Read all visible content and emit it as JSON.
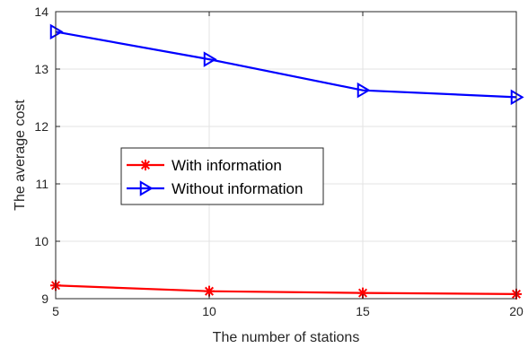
{
  "chart_data": {
    "type": "line",
    "x": [
      5,
      10,
      15,
      20
    ],
    "series": [
      {
        "name": "With information",
        "values": [
          9.23,
          9.13,
          9.1,
          9.08
        ],
        "color": "#ff0000",
        "marker": "asterisk"
      },
      {
        "name": "Without information",
        "values": [
          13.65,
          13.17,
          12.63,
          12.51
        ],
        "color": "#0000ff",
        "marker": "triangle-right"
      }
    ],
    "title": "",
    "xlabel": "The number of stations",
    "ylabel": "The average cost",
    "xlim": [
      5,
      20
    ],
    "ylim": [
      9,
      14
    ],
    "xticks": [
      "5",
      "10",
      "15",
      "20"
    ],
    "yticks": [
      "9",
      "10",
      "11",
      "12",
      "13",
      "14"
    ],
    "grid": true,
    "legend_position": "center-left"
  }
}
